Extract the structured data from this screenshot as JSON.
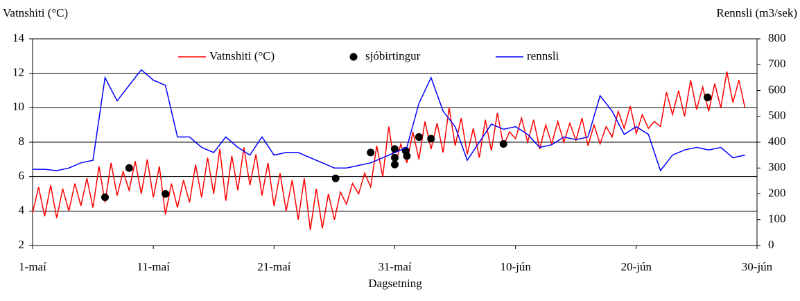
{
  "chart_data": {
    "type": "line",
    "y_label": "Vatnshiti (°C)",
    "y2_label": "Rennsli (m3/sek)",
    "x_label": "Dagsetning",
    "xlim": [
      0,
      60
    ],
    "xticks": [
      {
        "value": 0,
        "label": "1-maí"
      },
      {
        "value": 10,
        "label": "11-maí"
      },
      {
        "value": 20,
        "label": "21-maí"
      },
      {
        "value": 30,
        "label": "31-maí"
      },
      {
        "value": 40,
        "label": "10-jún"
      },
      {
        "value": 50,
        "label": "20-jún"
      },
      {
        "value": 60,
        "label": "30-jún"
      }
    ],
    "ylim": [
      2,
      14
    ],
    "yticks": [
      2,
      4,
      6,
      8,
      10,
      12,
      14
    ],
    "y2lim": [
      0,
      800
    ],
    "y2ticks": [
      0,
      100,
      200,
      300,
      400,
      500,
      600,
      700,
      800
    ],
    "grid": true,
    "legend": "top",
    "series": [
      {
        "name": "Vatnshiti (°C)",
        "type": "line",
        "color": "#ff0000",
        "x": [
          0,
          0.5,
          1,
          1.5,
          2,
          2.5,
          3,
          3.5,
          4,
          4.5,
          5,
          5.5,
          6,
          6.5,
          7,
          7.5,
          8,
          8.5,
          9,
          9.5,
          10,
          10.5,
          11,
          11.5,
          12,
          12.5,
          13,
          13.5,
          14,
          14.5,
          15,
          15.5,
          16,
          16.5,
          17,
          17.5,
          18,
          18.5,
          19,
          19.5,
          20,
          20.5,
          21,
          21.5,
          22,
          22.5,
          23,
          23.5,
          24,
          24.5,
          25,
          25.5,
          26,
          26.5,
          27,
          27.5,
          28,
          28.5,
          29,
          29.5,
          30,
          30.5,
          31,
          31.5,
          32,
          32.5,
          33,
          33.5,
          34,
          34.5,
          35,
          35.5,
          36,
          36.5,
          37,
          37.5,
          38,
          38.5,
          39,
          39.5,
          40,
          40.5,
          41,
          41.5,
          42,
          42.5,
          43,
          43.5,
          44,
          44.5,
          45,
          45.5,
          46,
          46.5,
          47,
          47.5,
          48,
          48.5,
          49,
          49.5,
          50,
          50.5,
          51,
          51.5,
          52,
          52.5,
          53,
          53.5,
          54,
          54.5,
          55,
          55.5,
          56,
          56.5,
          57,
          57.5,
          58,
          58.5,
          59
        ],
        "values": [
          3.9,
          5.4,
          3.7,
          5.5,
          3.6,
          5.3,
          4.0,
          5.6,
          4.3,
          5.9,
          4.2,
          6.6,
          4.5,
          6.8,
          4.9,
          6.3,
          5.2,
          6.9,
          5.0,
          7.0,
          4.8,
          6.6,
          3.8,
          5.6,
          4.2,
          5.8,
          4.5,
          6.7,
          4.8,
          7.1,
          5.0,
          7.6,
          4.6,
          7.2,
          5.2,
          7.7,
          5.5,
          7.3,
          4.9,
          6.8,
          4.3,
          6.2,
          4.0,
          5.8,
          3.5,
          5.9,
          2.9,
          5.3,
          3.0,
          5.0,
          3.5,
          5.1,
          4.4,
          5.6,
          5.0,
          6.2,
          5.4,
          7.8,
          6.0,
          8.9,
          6.6,
          7.9,
          6.8,
          8.6,
          7.0,
          9.2,
          7.6,
          9.1,
          7.4,
          10.0,
          7.8,
          9.4,
          7.3,
          8.8,
          7.1,
          9.3,
          7.5,
          9.7,
          7.8,
          8.6,
          8.2,
          9.4,
          8.0,
          9.3,
          7.6,
          9.0,
          7.9,
          9.2,
          8.0,
          9.1,
          8.1,
          9.4,
          7.8,
          9.0,
          7.9,
          8.9,
          8.3,
          9.8,
          8.8,
          10.1,
          8.5,
          9.6,
          8.8,
          9.2,
          8.9,
          10.9,
          9.6,
          11.0,
          9.5,
          11.6,
          9.9,
          11.2,
          9.8,
          11.4,
          10.0,
          12.1,
          10.3,
          11.6,
          10.0
        ]
      },
      {
        "name": "sjóbirtingur",
        "type": "scatter",
        "color": "#000000",
        "x": [
          6.0,
          8.0,
          11.0,
          25.1,
          28.0,
          30.0,
          30.0,
          30.0,
          30.9,
          31.0,
          32.0,
          33.0,
          39.0,
          55.9
        ],
        "values": [
          4.8,
          6.5,
          5.0,
          5.9,
          7.4,
          7.6,
          7.1,
          6.7,
          7.5,
          7.2,
          8.3,
          8.2,
          7.9,
          10.6
        ]
      },
      {
        "name": "rennsli",
        "type": "line",
        "axis": "y2",
        "color": "#0000ff",
        "x": [
          0,
          1,
          2,
          3,
          4,
          5,
          6,
          7,
          8,
          9,
          10,
          11,
          12,
          13,
          14,
          15,
          16,
          17,
          18,
          19,
          20,
          21,
          22,
          23,
          24,
          25,
          26,
          27,
          28,
          29,
          30,
          31,
          32,
          33,
          34,
          35,
          36,
          37,
          38,
          39,
          40,
          41,
          42,
          43,
          44,
          45,
          46,
          47,
          48,
          49,
          50,
          51,
          52,
          53,
          54,
          55,
          56,
          57,
          58,
          59
        ],
        "values": [
          295,
          295,
          290,
          300,
          320,
          330,
          650,
          560,
          620,
          680,
          640,
          620,
          420,
          420,
          380,
          360,
          420,
          380,
          350,
          420,
          350,
          360,
          360,
          340,
          320,
          300,
          300,
          310,
          320,
          340,
          360,
          380,
          550,
          650,
          520,
          460,
          330,
          400,
          470,
          450,
          460,
          430,
          380,
          390,
          420,
          410,
          420,
          580,
          520,
          430,
          460,
          430,
          290,
          350,
          370,
          380,
          370,
          380,
          340,
          350
        ]
      }
    ]
  }
}
